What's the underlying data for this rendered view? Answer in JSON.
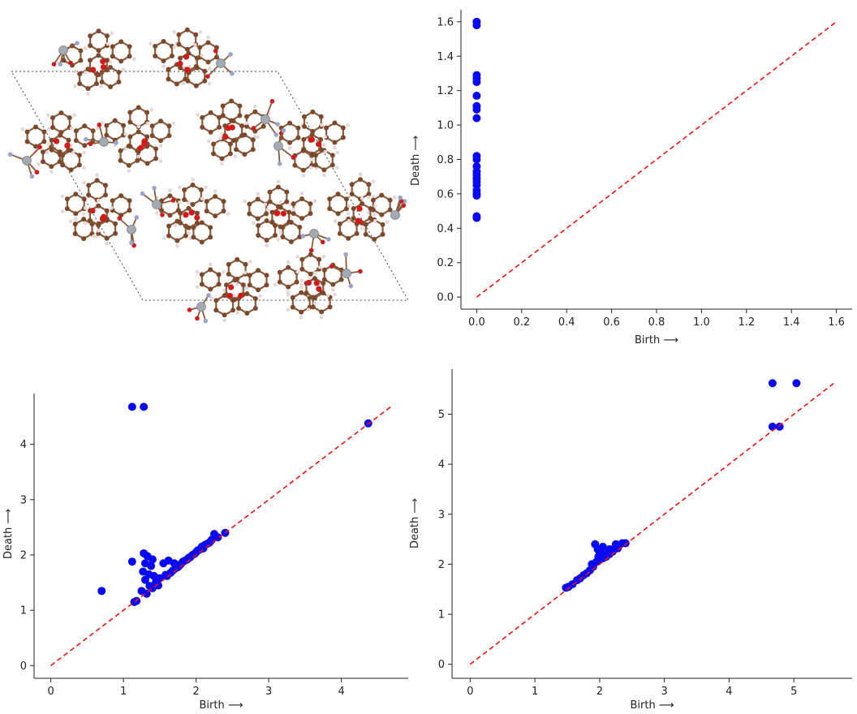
{
  "colors": {
    "points": "#0a0af0",
    "diagonal": "#ee1111",
    "axes": "#222222",
    "carbon": "#7b4a2c",
    "hydrogen": "#e6d6d6",
    "oxygen": "#d11a1a",
    "nitrogen": "#9aa4cf",
    "metal": "#a3aab2",
    "bond": "#8a5a3c",
    "cell": "#444444"
  },
  "panel_structure": {
    "icon": "molecular-crystal-structure"
  },
  "chart_data": [
    {
      "panel": "top-right",
      "type": "scatter",
      "xlabel": "Birth ⟶",
      "ylabel": "Death ⟶",
      "xlim": [
        -0.07,
        1.67
      ],
      "ylim": [
        -0.07,
        1.67
      ],
      "xticks": [
        "0.0",
        "0.2",
        "0.4",
        "0.6",
        "0.8",
        "1.0",
        "1.2",
        "1.4",
        "1.6"
      ],
      "yticks": [
        "0.0",
        "0.2",
        "0.4",
        "0.6",
        "0.8",
        "1.0",
        "1.2",
        "1.4",
        "1.6"
      ],
      "xtick_values": [
        0,
        0.2,
        0.4,
        0.6,
        0.8,
        1.0,
        1.2,
        1.4,
        1.6
      ],
      "ytick_values": [
        0,
        0.2,
        0.4,
        0.6,
        0.8,
        1.0,
        1.2,
        1.4,
        1.6
      ],
      "diagonal": [
        0,
        1.6
      ],
      "grid": false,
      "points": [
        [
          0,
          1.6
        ],
        [
          0,
          1.58
        ],
        [
          0,
          1.29
        ],
        [
          0,
          1.27
        ],
        [
          0,
          1.25
        ],
        [
          0,
          1.17
        ],
        [
          0,
          1.11
        ],
        [
          0,
          1.09
        ],
        [
          0,
          1.04
        ],
        [
          0,
          0.82
        ],
        [
          0,
          0.8
        ],
        [
          0,
          0.76
        ],
        [
          0,
          0.73
        ],
        [
          0,
          0.71
        ],
        [
          0,
          0.69
        ],
        [
          0,
          0.67
        ],
        [
          0,
          0.65
        ],
        [
          0,
          0.62
        ],
        [
          0,
          0.6
        ],
        [
          0,
          0.59
        ],
        [
          0,
          0.47
        ],
        [
          0,
          0.46
        ]
      ]
    },
    {
      "panel": "bottom-left",
      "type": "scatter",
      "xlabel": "Birth ⟶",
      "ylabel": "Death ⟶",
      "xlim": [
        -0.23,
        4.92
      ],
      "ylim": [
        -0.23,
        4.92
      ],
      "xticks": [
        "0",
        "1",
        "2",
        "3",
        "4"
      ],
      "yticks": [
        "0",
        "1",
        "2",
        "3",
        "4"
      ],
      "xtick_values": [
        0,
        1,
        2,
        3,
        4
      ],
      "ytick_values": [
        0,
        1,
        2,
        3,
        4
      ],
      "diagonal": [
        0,
        4.68
      ],
      "grid": false,
      "points": [
        [
          1.12,
          4.68
        ],
        [
          1.28,
          4.68
        ],
        [
          4.37,
          4.38
        ],
        [
          0.7,
          1.35
        ],
        [
          1.12,
          1.88
        ],
        [
          1.28,
          2.03
        ],
        [
          1.33,
          1.98
        ],
        [
          1.4,
          1.92
        ],
        [
          1.3,
          1.85
        ],
        [
          1.38,
          1.8
        ],
        [
          1.27,
          1.7
        ],
        [
          1.35,
          1.65
        ],
        [
          1.42,
          1.62
        ],
        [
          1.3,
          1.55
        ],
        [
          1.45,
          1.52
        ],
        [
          1.25,
          1.35
        ],
        [
          1.15,
          1.15
        ],
        [
          1.18,
          1.17
        ],
        [
          1.32,
          1.3
        ],
        [
          1.4,
          1.4
        ],
        [
          1.48,
          1.45
        ],
        [
          1.55,
          1.85
        ],
        [
          1.62,
          1.9
        ],
        [
          1.6,
          1.62
        ],
        [
          1.68,
          1.72
        ],
        [
          1.75,
          1.78
        ],
        [
          1.8,
          1.85
        ],
        [
          1.85,
          1.9
        ],
        [
          1.9,
          1.95
        ],
        [
          1.95,
          2.0
        ],
        [
          2.0,
          2.05
        ],
        [
          2.05,
          2.1
        ],
        [
          2.1,
          2.12
        ],
        [
          2.15,
          2.2
        ],
        [
          2.2,
          2.25
        ],
        [
          2.25,
          2.38
        ],
        [
          2.3,
          2.32
        ],
        [
          2.4,
          2.4
        ],
        [
          1.65,
          1.68
        ],
        [
          1.7,
          1.85
        ],
        [
          1.78,
          1.82
        ],
        [
          1.88,
          1.92
        ],
        [
          1.98,
          2.02
        ],
        [
          2.08,
          2.15
        ],
        [
          2.18,
          2.22
        ],
        [
          1.5,
          1.58
        ],
        [
          1.58,
          1.64
        ],
        [
          1.72,
          1.76
        ],
        [
          1.82,
          1.88
        ],
        [
          1.92,
          1.96
        ],
        [
          2.02,
          2.08
        ],
        [
          2.12,
          2.18
        ],
        [
          2.22,
          2.28
        ],
        [
          1.36,
          1.44
        ],
        [
          1.44,
          1.48
        ]
      ]
    },
    {
      "panel": "bottom-right",
      "type": "scatter",
      "xlabel": "Birth ⟶",
      "ylabel": "Death ⟶",
      "xlim": [
        -0.28,
        5.9
      ],
      "ylim": [
        -0.28,
        5.9
      ],
      "xticks": [
        "0",
        "1",
        "2",
        "3",
        "4",
        "5"
      ],
      "yticks": [
        "0",
        "1",
        "2",
        "3",
        "4",
        "5"
      ],
      "xtick_values": [
        0,
        1,
        2,
        3,
        4,
        5
      ],
      "ytick_values": [
        0,
        1,
        2,
        3,
        4,
        5
      ],
      "diagonal": [
        0,
        5.62
      ],
      "grid": false,
      "points": [
        [
          4.67,
          5.62
        ],
        [
          5.04,
          5.62
        ],
        [
          4.67,
          4.75
        ],
        [
          4.78,
          4.75
        ],
        [
          1.48,
          1.53
        ],
        [
          1.52,
          1.55
        ],
        [
          1.58,
          1.6
        ],
        [
          1.65,
          1.68
        ],
        [
          1.7,
          1.72
        ],
        [
          1.75,
          1.78
        ],
        [
          1.8,
          1.82
        ],
        [
          1.85,
          1.88
        ],
        [
          1.9,
          1.95
        ],
        [
          1.93,
          2.4
        ],
        [
          1.97,
          2.3
        ],
        [
          2.0,
          2.22
        ],
        [
          2.05,
          2.35
        ],
        [
          2.1,
          2.18
        ],
        [
          2.15,
          2.3
        ],
        [
          2.2,
          2.25
        ],
        [
          2.25,
          2.4
        ],
        [
          2.3,
          2.38
        ],
        [
          2.35,
          2.42
        ],
        [
          2.4,
          2.42
        ],
        [
          1.95,
          2.05
        ],
        [
          2.0,
          2.1
        ],
        [
          2.05,
          2.12
        ],
        [
          2.1,
          2.15
        ],
        [
          2.15,
          2.2
        ],
        [
          2.2,
          2.3
        ],
        [
          1.88,
          2.0
        ],
        [
          1.98,
          2.15
        ],
        [
          2.08,
          2.2
        ],
        [
          2.18,
          2.28
        ],
        [
          2.28,
          2.32
        ]
      ]
    }
  ]
}
